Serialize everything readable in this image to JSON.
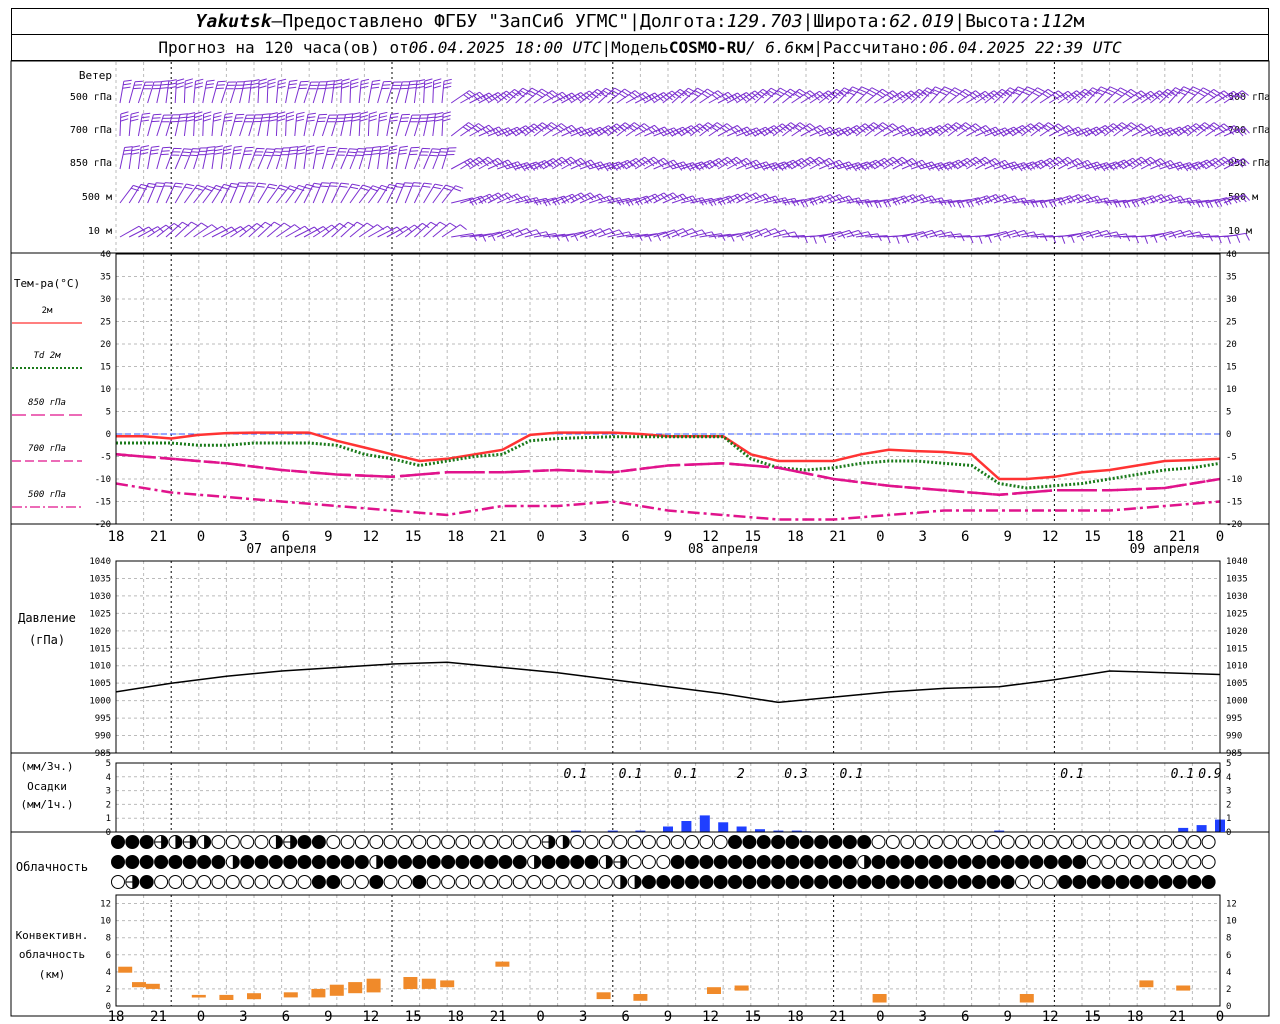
{
  "header": {
    "station": "Yakutsk",
    "dash": "—",
    "provider": "Предоставлено ФГБУ \"ЗапСиб УГМС\"",
    "lon_label": "Долгота:",
    "lon": "129.703",
    "lat_label": "Широта:",
    "lat": "62.019",
    "alt_label": "Высота:",
    "alt": "112",
    "alt_unit": "м",
    "sep": "|",
    "forecast_prefix": "Прогноз на 120 часа(ов) от",
    "forecast_time": "06.04.2025 18:00 UTC",
    "model_label": "Модель",
    "model": "COSMO-RU",
    "resolution": "/ 6.6",
    "resolution_unit": "км",
    "calc_label": "Рассчитано:",
    "calc_time": "06.04.2025 22:39 UTC"
  },
  "panels": {
    "wind": {
      "title": "Ветер",
      "levels": [
        "500 гПа",
        "700 гПа",
        "850 гПа",
        "500 м",
        "10  м"
      ]
    },
    "temperature": {
      "title": "Тем-ра(°С)",
      "legend": [
        {
          "label": "2м",
          "color": "#ff3333",
          "style": "solid"
        },
        {
          "label": "Td  2м",
          "color": "#1a7a1a",
          "style": "dotted"
        },
        {
          "label": "850 гПа",
          "color": "#e0138c",
          "style": "long-dash"
        },
        {
          "label": "700 гПа",
          "color": "#e0138c",
          "style": "dash"
        },
        {
          "label": "500 гПа",
          "color": "#e0138c",
          "style": "dash-dot"
        }
      ],
      "y_ticks": [
        "40",
        "35",
        "30",
        "25",
        "20",
        "15",
        "10",
        "5",
        "0",
        "-5",
        "-10",
        "-15",
        "-20"
      ]
    },
    "pressure": {
      "title1": "Давление",
      "title2": "(гПа)",
      "y_ticks": [
        "1040",
        "1035",
        "1030",
        "1025",
        "1020",
        "1015",
        "1010",
        "1005",
        "1000",
        "995",
        "990",
        "985"
      ]
    },
    "precip": {
      "title1": "(мм/3ч.)",
      "title2": "Осадки",
      "title3": "(мм/1ч.)",
      "y_ticks": [
        "5",
        "4",
        "3",
        "2",
        "1",
        "0"
      ],
      "labels": [
        "0.1",
        "0.1",
        "0.1",
        "2",
        "0.3",
        "0.1",
        "0.1",
        "0.1",
        "0.9"
      ]
    },
    "clouds": {
      "title": "Облачность"
    },
    "convective": {
      "title1": "Конвективн.",
      "title2": "облачность",
      "title3": "(км)",
      "y_ticks": [
        "12",
        "10",
        "8",
        "6",
        "4",
        "2",
        "0"
      ]
    }
  },
  "time_axis": {
    "hour_labels": [
      "18",
      "21",
      "0",
      "3",
      "6",
      "9",
      "12",
      "15",
      "18",
      "21",
      "0",
      "3",
      "6",
      "9",
      "12",
      "15",
      "18",
      "21",
      "0",
      "3",
      "6",
      "9",
      "12",
      "15",
      "18",
      "21",
      "0"
    ],
    "dates": [
      "07 апреля",
      "08 апреля",
      "09 апреля"
    ]
  },
  "chart_data": {
    "type": "line",
    "x_unit": "hours from 06.04.2025 18:00 UTC",
    "temperature": {
      "ylim": [
        -20,
        40
      ],
      "series": [
        {
          "name": "2м",
          "x": [
            0,
            3,
            6,
            9,
            12,
            15,
            18,
            21,
            24,
            27,
            30,
            33,
            36,
            39,
            42,
            45,
            48,
            51,
            54,
            57,
            60,
            63,
            66,
            69,
            72,
            75,
            78,
            81,
            84,
            87,
            90,
            93,
            96,
            99,
            102,
            105,
            108,
            111,
            114,
            117,
            120
          ],
          "values": [
            -0.5,
            -0.5,
            -1,
            -0.2,
            0.2,
            0.3,
            0.3,
            0.3,
            -1.5,
            -3,
            -4.5,
            -6,
            -5.5,
            -4.5,
            -3.5,
            -0.2,
            0.3,
            0.3,
            0.3,
            0,
            -0.5,
            -0.5,
            -0.5,
            -4.5,
            -6,
            -6,
            -6,
            -4.5,
            -3.5,
            -3.8,
            -4,
            -4.5,
            -10,
            -10,
            -9.5,
            -8.5,
            -8,
            -7,
            -6,
            -5.8,
            -5.5
          ]
        },
        {
          "name": "Td  2м",
          "x": [
            0,
            3,
            6,
            9,
            12,
            15,
            18,
            21,
            24,
            27,
            30,
            33,
            36,
            39,
            42,
            45,
            48,
            51,
            54,
            57,
            60,
            63,
            66,
            69,
            72,
            75,
            78,
            81,
            84,
            87,
            90,
            93,
            96,
            99,
            102,
            105,
            108,
            111,
            114,
            117,
            120
          ],
          "values": [
            -2,
            -2,
            -2,
            -2.5,
            -2.5,
            -2,
            -2,
            -2,
            -2.5,
            -4.5,
            -5.5,
            -7,
            -6,
            -5,
            -4.5,
            -1.5,
            -1,
            -0.8,
            -0.6,
            -0.6,
            -0.6,
            -0.6,
            -0.6,
            -5.5,
            -7.5,
            -8,
            -7.5,
            -6.5,
            -6,
            -6,
            -6.5,
            -7,
            -11,
            -12,
            -11.5,
            -11,
            -10,
            -9,
            -8,
            -7.5,
            -6.5
          ]
        },
        {
          "name": "850 гПа",
          "x": [
            0,
            6,
            12,
            18,
            24,
            30,
            36,
            42,
            48,
            54,
            60,
            66,
            72,
            78,
            84,
            90,
            96,
            102,
            108,
            114,
            120
          ],
          "values": [
            -4.5,
            -5.5,
            -6.5,
            -8,
            -9,
            -9.5,
            -8.5,
            -8.5,
            -8,
            -8.5,
            -7,
            -6.5,
            -7.5,
            -10,
            -11.5,
            -12.5,
            -13.5,
            -12.5,
            -12.5,
            -12,
            -10
          ]
        },
        {
          "name": "700 гПа",
          "x": [
            0,
            6,
            12,
            18,
            24,
            30,
            36,
            42,
            48,
            54,
            60,
            66,
            72,
            78,
            84,
            90,
            96,
            102,
            108,
            114,
            120
          ],
          "values": [
            -4.5,
            -5.5,
            -6.5,
            -8,
            -9,
            -9.5,
            -8.5,
            -8.5,
            -8,
            -8.5,
            -7,
            -6.5,
            -7.5,
            -10,
            -11.5,
            -12.5,
            -13.5,
            -12.5,
            -12.5,
            -12,
            -10
          ]
        },
        {
          "name": "500 гПа",
          "x": [
            0,
            6,
            12,
            18,
            24,
            30,
            36,
            42,
            48,
            54,
            60,
            66,
            72,
            78,
            84,
            90,
            96,
            102,
            108,
            114,
            120
          ],
          "values": [
            -11,
            -13,
            -14,
            -15,
            -16,
            -17,
            -18,
            -16,
            -16,
            -15,
            -17,
            -18,
            -19,
            -19,
            -18,
            -17,
            -17,
            -17,
            -17,
            -16,
            -15
          ]
        }
      ]
    },
    "pressure": {
      "ylim": [
        985,
        1040
      ],
      "series": [
        {
          "name": "Давление",
          "x": [
            0,
            6,
            12,
            18,
            24,
            30,
            36,
            42,
            48,
            54,
            60,
            66,
            72,
            78,
            84,
            90,
            96,
            102,
            108,
            114,
            120
          ],
          "values": [
            1002.5,
            1005,
            1007,
            1008.5,
            1009.5,
            1010.5,
            1011,
            1009.5,
            1008,
            1006,
            1004,
            1002,
            999.5,
            1001,
            1002.5,
            1003.5,
            1004,
            1006,
            1008.5,
            1008,
            1007.5
          ]
        }
      ]
    },
    "precipitation": {
      "ylim": [
        0,
        5
      ],
      "x": [
        50,
        54,
        57,
        60,
        62,
        64,
        66,
        68,
        70,
        72,
        74,
        75,
        96,
        116,
        118,
        120
      ],
      "values": [
        0.1,
        0.1,
        0.1,
        0.4,
        0.8,
        1.2,
        0.7,
        0.4,
        0.2,
        0.1,
        0.1,
        0.05,
        0.1,
        0.3,
        0.5,
        0.9
      ]
    },
    "convective": {
      "ylim": [
        0,
        13
      ],
      "bars": [
        {
          "x": 1,
          "base": 3.9,
          "top": 4.6
        },
        {
          "x": 2.5,
          "base": 2.2,
          "top": 2.8
        },
        {
          "x": 4,
          "base": 2.0,
          "top": 2.6
        },
        {
          "x": 9,
          "base": 1.0,
          "top": 1.3
        },
        {
          "x": 12,
          "base": 0.7,
          "top": 1.3
        },
        {
          "x": 15,
          "base": 0.8,
          "top": 1.5
        },
        {
          "x": 19,
          "base": 1.0,
          "top": 1.6
        },
        {
          "x": 22,
          "base": 1.0,
          "top": 2.0
        },
        {
          "x": 24,
          "base": 1.2,
          "top": 2.5
        },
        {
          "x": 26,
          "base": 1.5,
          "top": 2.8
        },
        {
          "x": 28,
          "base": 1.6,
          "top": 3.2
        },
        {
          "x": 32,
          "base": 2.0,
          "top": 3.4
        },
        {
          "x": 34,
          "base": 2.0,
          "top": 3.2
        },
        {
          "x": 36,
          "base": 2.2,
          "top": 3.0
        },
        {
          "x": 42,
          "base": 4.6,
          "top": 5.2
        },
        {
          "x": 53,
          "base": 0.8,
          "top": 1.6
        },
        {
          "x": 57,
          "base": 0.6,
          "top": 1.4
        },
        {
          "x": 65,
          "base": 1.4,
          "top": 2.2
        },
        {
          "x": 68,
          "base": 1.8,
          "top": 2.4
        },
        {
          "x": 83,
          "base": 0.4,
          "top": 1.4
        },
        {
          "x": 99,
          "base": 0.4,
          "top": 1.4
        },
        {
          "x": 112,
          "base": 2.2,
          "top": 3.0
        },
        {
          "x": 116,
          "base": 1.8,
          "top": 2.4
        }
      ]
    }
  }
}
